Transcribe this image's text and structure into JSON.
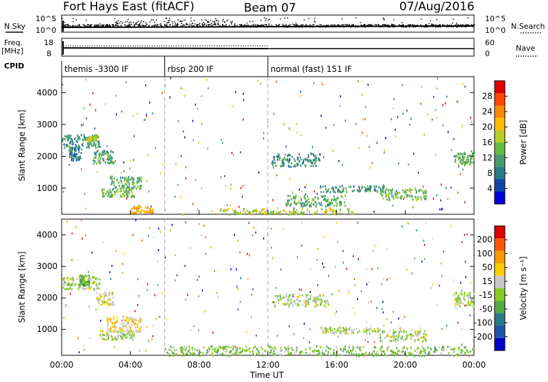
{
  "header": {
    "station": "Fort Hays East (fitACF)",
    "beam": "Beam 07",
    "date": "07/Aug/2016"
  },
  "top_panels": {
    "nsky_label": "N.Sky",
    "nsearch_label": "N.Search",
    "noise_ticks_left": [
      "10^5",
      "10^0"
    ],
    "noise_ticks_right": [
      "10^5",
      "10^0"
    ],
    "freq_label": "Freq.",
    "freq_unit": "[MHz]",
    "freq_ticks": [
      "18",
      "8"
    ],
    "nave_label": "Nave",
    "nave_ticks": [
      "60",
      "0"
    ],
    "cpid_label": "CPID",
    "cpid_segments": [
      {
        "label": "themis -3300 IF",
        "start": 0,
        "end": 6
      },
      {
        "label": "rbsp 200 IF",
        "start": 6,
        "end": 12
      },
      {
        "label": "normal (fast) 151 IF",
        "start": 12,
        "end": 24
      }
    ]
  },
  "x_axis": {
    "label": "Time UT",
    "ticks": [
      "00:00",
      "04:00",
      "08:00",
      "12:00",
      "16:00",
      "20:00",
      "00:00"
    ],
    "tick_hours": [
      0,
      4,
      8,
      12,
      16,
      20,
      24
    ]
  },
  "colorbars": {
    "power": {
      "label": "Power [dB]",
      "ticks": [
        "28",
        "24",
        "20",
        "16",
        "12",
        "8",
        "4"
      ],
      "colors": [
        "#0000dd",
        "#1144aa",
        "#2a7a8a",
        "#4a9a70",
        "#66bb44",
        "#bbcc22",
        "#ffbb00",
        "#ff8800",
        "#ff4400",
        "#dd0000"
      ]
    },
    "velocity": {
      "label": "Velocity [m s⁻¹]",
      "ticks": [
        "200",
        "100",
        "50",
        "15",
        "-15",
        "-50",
        "-100",
        "-200"
      ],
      "colors": [
        "#0000cc",
        "#2255aa",
        "#2a7a8a",
        "#55aa44",
        "#88cc22",
        "#c8c8c8",
        "#ffcc00",
        "#ff9900",
        "#ff5500",
        "#dd0000"
      ]
    }
  },
  "chart_data": [
    {
      "type": "heatmap",
      "title": "",
      "xlabel": "Time UT",
      "ylabel": "Slant Range [km]",
      "xlim": [
        0,
        24
      ],
      "ylim": [
        180,
        4500
      ],
      "yticks": [
        "4000",
        "3000",
        "2000",
        "1000"
      ],
      "colorbar_label": "Power [dB]",
      "clim": [
        0,
        30
      ],
      "mode_change_hours": [
        6,
        12
      ],
      "regions": [
        {
          "t0": 0.0,
          "t1": 2.2,
          "r0": 2300,
          "r1": 2700,
          "value": 10
        },
        {
          "t0": 0.4,
          "t1": 1.1,
          "r0": 1900,
          "r1": 2350,
          "value": 8
        },
        {
          "t0": 1.4,
          "t1": 2.0,
          "r0": 2500,
          "r1": 2650,
          "value": 16
        },
        {
          "t0": 1.8,
          "t1": 3.0,
          "r0": 1800,
          "r1": 2200,
          "value": 11
        },
        {
          "t0": 2.8,
          "t1": 4.6,
          "r0": 1000,
          "r1": 1400,
          "value": 12
        },
        {
          "t0": 2.3,
          "t1": 4.2,
          "r0": 750,
          "r1": 1000,
          "value": 13
        },
        {
          "t0": 4.0,
          "t1": 5.3,
          "r0": 250,
          "r1": 450,
          "value": 20
        },
        {
          "t0": 12.2,
          "t1": 15.0,
          "r0": 1700,
          "r1": 2100,
          "value": 9
        },
        {
          "t0": 15.0,
          "t1": 18.8,
          "r0": 900,
          "r1": 1100,
          "value": 10
        },
        {
          "t0": 18.5,
          "t1": 21.2,
          "r0": 650,
          "r1": 1000,
          "value": 13
        },
        {
          "t0": 13.0,
          "t1": 16.5,
          "r0": 450,
          "r1": 800,
          "value": 12
        },
        {
          "t0": 9.0,
          "t1": 17.0,
          "r0": 200,
          "r1": 380,
          "value": 16
        },
        {
          "t0": 22.8,
          "t1": 24.0,
          "r0": 1750,
          "r1": 2200,
          "value": 12
        }
      ]
    },
    {
      "type": "heatmap",
      "title": "",
      "xlabel": "Time UT",
      "ylabel": "Slant Range [km]",
      "xlim": [
        0,
        24
      ],
      "ylim": [
        180,
        4500
      ],
      "yticks": [
        "4000",
        "3000",
        "2000",
        "1000"
      ],
      "colorbar_label": "Velocity [m s⁻¹]",
      "clim": [
        -250,
        250
      ],
      "mode_change_hours": [
        6,
        12
      ],
      "regions": [
        {
          "t0": 0.0,
          "t1": 2.2,
          "r0": 2300,
          "r1": 2700,
          "value": 0
        },
        {
          "t0": 1.0,
          "t1": 1.6,
          "r0": 2400,
          "r1": 2750,
          "value": -70
        },
        {
          "t0": 2.0,
          "t1": 3.0,
          "r0": 1800,
          "r1": 2200,
          "value": 40
        },
        {
          "t0": 2.6,
          "t1": 4.6,
          "r0": 950,
          "r1": 1450,
          "value": 60
        },
        {
          "t0": 2.2,
          "t1": 4.2,
          "r0": 700,
          "r1": 1000,
          "value": 0
        },
        {
          "t0": 12.2,
          "t1": 15.5,
          "r0": 1750,
          "r1": 2150,
          "value": 0
        },
        {
          "t0": 15.0,
          "t1": 18.8,
          "r0": 900,
          "r1": 1100,
          "value": 0
        },
        {
          "t0": 18.5,
          "t1": 21.2,
          "r0": 650,
          "r1": 1000,
          "value": 0
        },
        {
          "t0": 6.0,
          "t1": 24.0,
          "r0": 190,
          "r1": 500,
          "value": -40
        },
        {
          "t0": 22.8,
          "t1": 24.0,
          "r0": 1750,
          "r1": 2200,
          "value": 0
        }
      ]
    }
  ]
}
